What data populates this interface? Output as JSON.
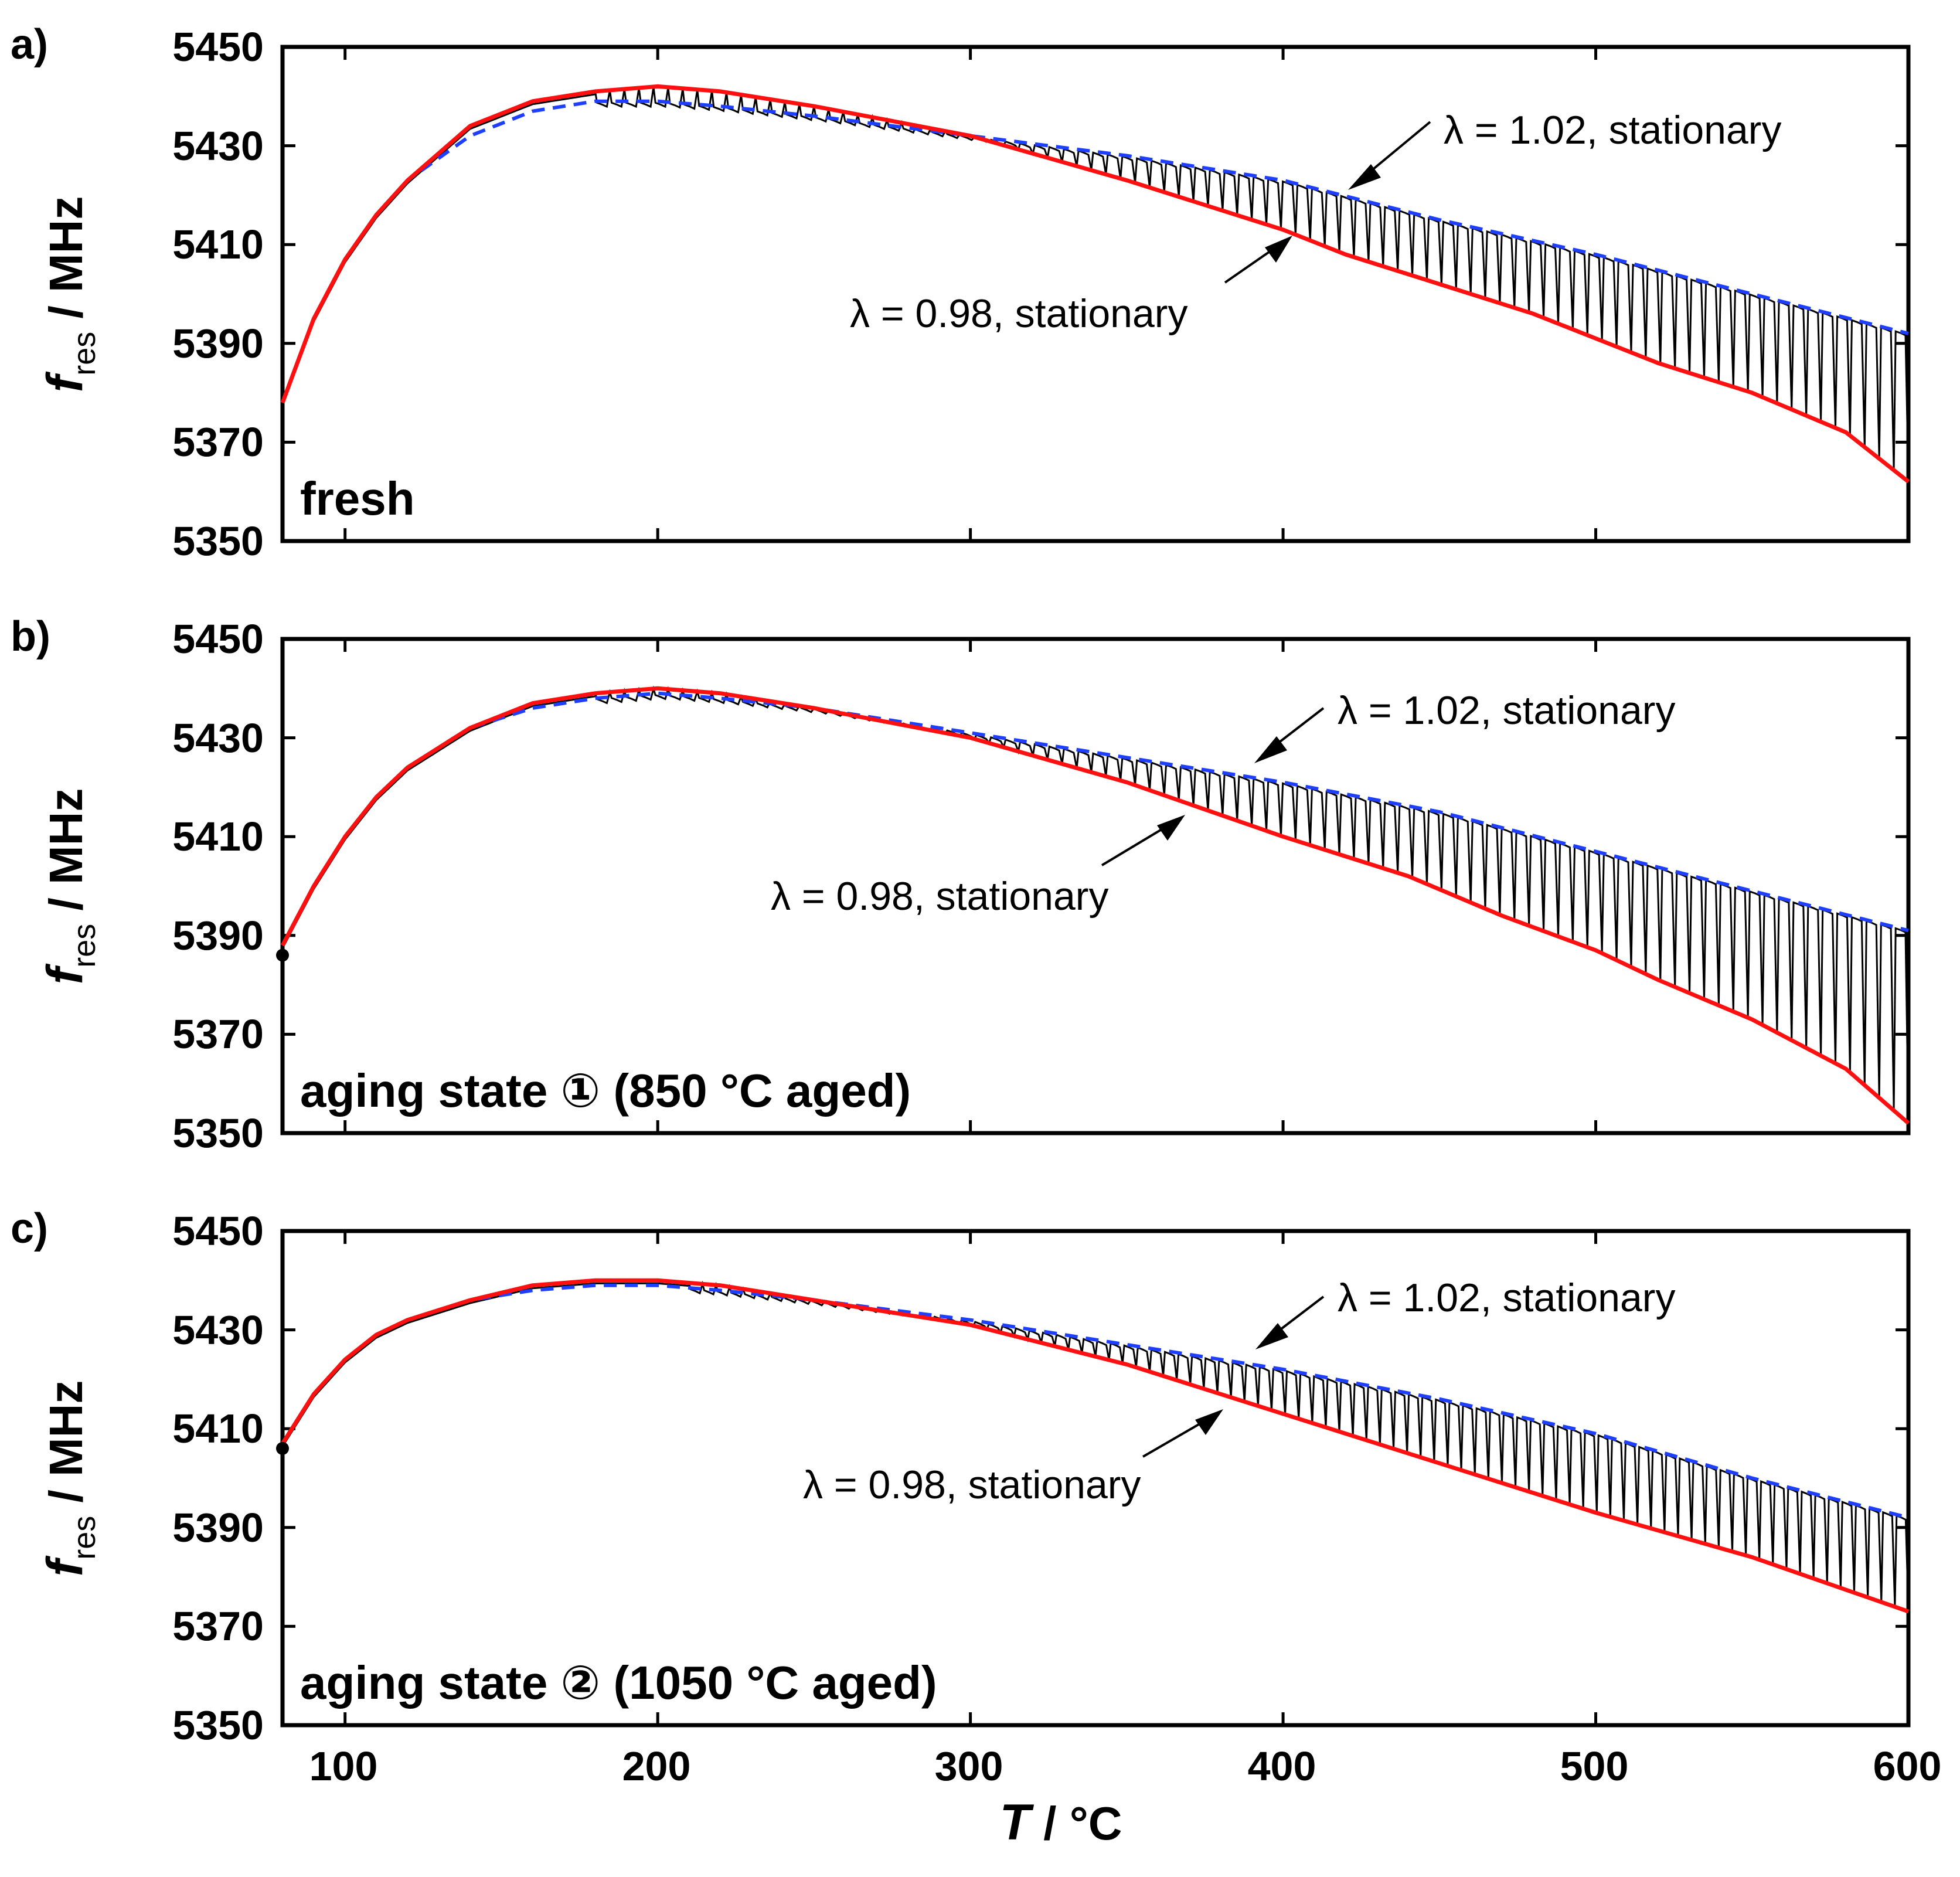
{
  "chart_data": [
    {
      "type": "line",
      "panel_label": "a)",
      "state_label": "fresh",
      "xlabel_var": "T",
      "xlabel_unit": " / °C",
      "ylabel_var": "f",
      "ylabel_sub": "res",
      "ylabel_unit": " / MHz",
      "xlim": [
        80,
        600
      ],
      "ylim": [
        5350,
        5450
      ],
      "xticks": [
        "100",
        "200",
        "300",
        "400",
        "500",
        "600"
      ],
      "yticks": [
        "5350",
        "5370",
        "5390",
        "5410",
        "5430",
        "5450"
      ],
      "annotations": [
        {
          "text": "λ = 1.02, stationary",
          "points_to": [
            420,
            5420
          ]
        },
        {
          "text": "λ = 0.98, stationary",
          "points_to": [
            405,
            5413
          ]
        }
      ],
      "series": [
        {
          "style": "blue-dashed",
          "x": [
            80,
            90,
            100,
            110,
            120,
            140,
            160,
            180,
            200,
            220,
            250,
            300,
            350,
            400,
            450,
            500,
            550,
            600
          ],
          "y": [
            5378,
            5395,
            5407,
            5416,
            5423,
            5432,
            5437,
            5439,
            5439,
            5438,
            5436,
            5432,
            5428,
            5423,
            5415,
            5408,
            5400,
            5392
          ]
        },
        {
          "style": "red",
          "x": [
            80,
            90,
            100,
            110,
            120,
            140,
            160,
            180,
            200,
            220,
            250,
            300,
            350,
            400,
            420,
            450,
            480,
            500,
            520,
            550,
            580,
            600
          ],
          "y": [
            5378,
            5395,
            5407,
            5416,
            5423,
            5434,
            5439,
            5441,
            5442,
            5441,
            5438,
            5432,
            5423,
            5413,
            5408,
            5402,
            5396,
            5391,
            5386,
            5380,
            5372,
            5362
          ]
        },
        {
          "style": "black-oscillation",
          "x_start": 180,
          "x_end": 600,
          "cycles": 90,
          "lower": "red",
          "upper": "blue-dashed"
        }
      ]
    },
    {
      "type": "line",
      "panel_label": "b)",
      "state_label": "aging state ① (850 °C aged)",
      "xlabel_var": "T",
      "xlabel_unit": " / °C",
      "ylabel_var": "f",
      "ylabel_sub": "res",
      "ylabel_unit": " / MHz",
      "xlim": [
        80,
        600
      ],
      "ylim": [
        5350,
        5450
      ],
      "xticks": [
        "100",
        "200",
        "300",
        "400",
        "500",
        "600"
      ],
      "yticks": [
        "5350",
        "5370",
        "5390",
        "5410",
        "5430",
        "5450"
      ],
      "annotations": [
        {
          "text": "λ = 1.02, stationary",
          "points_to": [
            390,
            5423
          ]
        },
        {
          "text": "λ = 0.98, stationary",
          "points_to": [
            370,
            5413
          ]
        }
      ],
      "series": [
        {
          "style": "blue-dashed",
          "x": [
            80,
            90,
            100,
            110,
            120,
            140,
            160,
            180,
            200,
            220,
            250,
            300,
            350,
            400,
            450,
            500,
            550,
            600
          ],
          "y": [
            5388,
            5400,
            5410,
            5418,
            5424,
            5432,
            5436,
            5438,
            5439,
            5438,
            5436,
            5431,
            5426,
            5421,
            5415,
            5407,
            5399,
            5391
          ]
        },
        {
          "style": "red",
          "x": [
            80,
            90,
            100,
            110,
            120,
            140,
            160,
            180,
            200,
            220,
            250,
            300,
            350,
            400,
            440,
            470,
            500,
            520,
            550,
            580,
            600
          ],
          "y": [
            5388,
            5400,
            5410,
            5418,
            5424,
            5432,
            5437,
            5439,
            5440,
            5439,
            5436,
            5430,
            5421,
            5410,
            5402,
            5394,
            5387,
            5381,
            5373,
            5363,
            5352
          ]
        },
        {
          "style": "black-oscillation",
          "x_start": 180,
          "x_end": 600,
          "cycles": 90,
          "lower": "red",
          "upper": "blue-dashed"
        }
      ],
      "marker": {
        "x": 80,
        "y": 5386
      }
    },
    {
      "type": "line",
      "panel_label": "c)",
      "state_label": "aging state ② (1050 °C aged)",
      "xlabel_var": "T",
      "xlabel_unit": " / °C",
      "ylabel_var": "f",
      "ylabel_sub": "res",
      "ylabel_unit": " / MHz",
      "xlim": [
        80,
        600
      ],
      "ylim": [
        5350,
        5450
      ],
      "xticks": [
        "100",
        "200",
        "300",
        "400",
        "500",
        "600"
      ],
      "yticks": [
        "5350",
        "5370",
        "5390",
        "5410",
        "5430",
        "5450"
      ],
      "annotations": [
        {
          "text": "λ = 1.02, stationary",
          "points_to": [
            390,
            5424
          ]
        },
        {
          "text": "λ = 0.98, stationary",
          "points_to": [
            388,
            5415
          ]
        }
      ],
      "series": [
        {
          "style": "blue-dashed",
          "x": [
            80,
            90,
            100,
            110,
            120,
            140,
            160,
            180,
            200,
            220,
            250,
            300,
            350,
            400,
            450,
            500,
            550,
            600
          ],
          "y": [
            5407,
            5417,
            5424,
            5429,
            5432,
            5436,
            5438,
            5439,
            5439,
            5438,
            5436,
            5432,
            5427,
            5422,
            5416,
            5409,
            5400,
            5392
          ]
        },
        {
          "style": "red",
          "x": [
            80,
            90,
            100,
            110,
            120,
            140,
            160,
            180,
            200,
            220,
            250,
            300,
            350,
            400,
            450,
            500,
            550,
            600
          ],
          "y": [
            5407,
            5417,
            5424,
            5429,
            5432,
            5436,
            5439,
            5440,
            5440,
            5439,
            5436,
            5431,
            5423,
            5413,
            5403,
            5393,
            5384,
            5373
          ]
        },
        {
          "style": "black-oscillation",
          "x_start": 210,
          "x_end": 600,
          "cycles": 90,
          "lower": "red",
          "upper": "blue-dashed"
        }
      ],
      "marker": {
        "x": 80,
        "y": 5406
      }
    }
  ]
}
